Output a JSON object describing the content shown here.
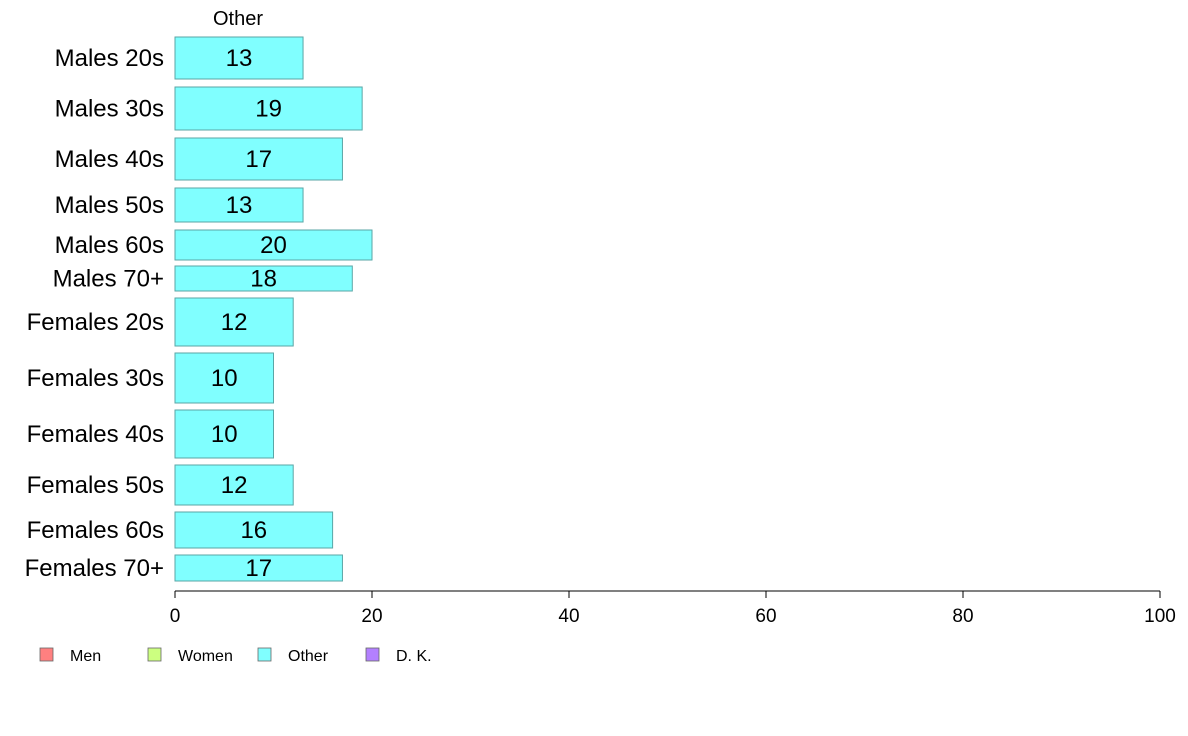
{
  "chart_data": {
    "type": "bar",
    "orientation": "horizontal",
    "panel_title": "Other",
    "categories": [
      "Males 20s",
      "Males 30s",
      "Males 40s",
      "Males 50s",
      "Males 60s",
      "Males 70+",
      "Females 20s",
      "Females 30s",
      "Females 40s",
      "Females 50s",
      "Females 60s",
      "Females 70+"
    ],
    "values": [
      13,
      19,
      17,
      13,
      20,
      18,
      12,
      10,
      10,
      12,
      16,
      17
    ],
    "xlim": [
      0,
      100
    ],
    "xticks": [
      0,
      20,
      40,
      60,
      80,
      100
    ],
    "bar_color": "#80FFFF",
    "bar_edge_color": "#5aa6a6",
    "legend": {
      "placement": "bottom-left",
      "items": [
        {
          "label": "Men",
          "color": "#FF8080"
        },
        {
          "label": "Women",
          "color": "#CCFF80"
        },
        {
          "label": "Other",
          "color": "#80FFFF"
        },
        {
          "label": "D. K.",
          "color": "#B380FF"
        }
      ]
    },
    "grid": false
  }
}
